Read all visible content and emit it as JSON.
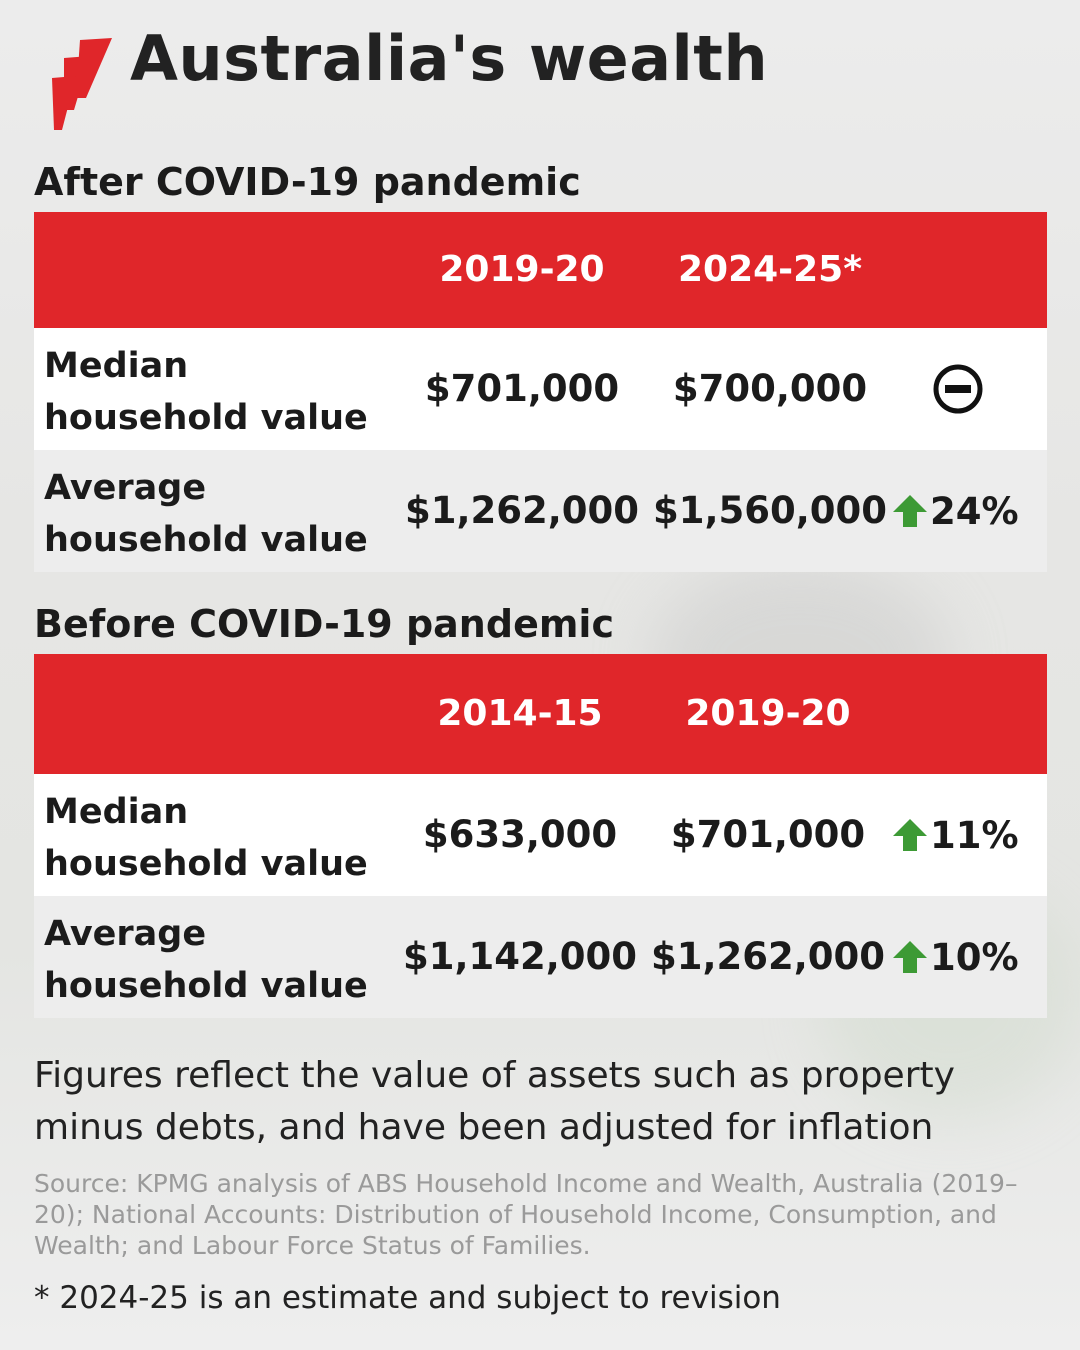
{
  "header": {
    "title": "Australia's wealth"
  },
  "after": {
    "heading": "After COVID-19 pandemic",
    "years": [
      "2019-20",
      "2024-25*"
    ],
    "rows": [
      {
        "label": "Median household value",
        "v1": "$701,000",
        "v2": "$700,000",
        "change": "",
        "change_icon": "no-change-icon"
      },
      {
        "label": "Average household value",
        "v1": "$1,262,000",
        "v2": "$1,560,000",
        "change": "24%",
        "change_icon": "up-arrow-icon"
      }
    ]
  },
  "before": {
    "heading": "Before COVID-19 pandemic",
    "years": [
      "2014-15",
      "2019-20"
    ],
    "rows": [
      {
        "label": "Median household value",
        "v1": "$633,000",
        "v2": "$701,000",
        "change": "11%",
        "change_icon": "up-arrow-icon"
      },
      {
        "label": "Average household value",
        "v1": "$1,142,000",
        "v2": "$1,262,000",
        "change": "10%",
        "change_icon": "up-arrow-icon"
      }
    ]
  },
  "note": "Figures reflect the value of assets such as property minus debts, and have been adjusted for inflation",
  "source": "Source: KPMG analysis of ABS Household Income and Wealth, Australia (2019–20); National Accounts: Distribution of Household Income, Consumption, and Wealth; and Labour Force Status of Families.",
  "footnote": "* 2024-25 is an estimate and subject to revision",
  "colors": {
    "header_red": "#e0262a",
    "up_green": "#3d9a35",
    "text": "#1b1b1b"
  }
}
